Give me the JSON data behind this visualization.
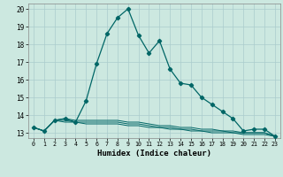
{
  "title": "",
  "xlabel": "Humidex (Indice chaleur)",
  "background_color": "#cce8e0",
  "grid_color": "#aacccc",
  "line_color": "#006666",
  "xlim": [
    -0.5,
    23.5
  ],
  "ylim": [
    12.7,
    20.3
  ],
  "yticks": [
    13,
    14,
    15,
    16,
    17,
    18,
    19,
    20
  ],
  "xticks": [
    0,
    1,
    2,
    3,
    4,
    5,
    6,
    7,
    8,
    9,
    10,
    11,
    12,
    13,
    14,
    15,
    16,
    17,
    18,
    19,
    20,
    21,
    22,
    23
  ],
  "main_series": [
    13.3,
    13.1,
    13.7,
    13.8,
    13.6,
    14.8,
    16.9,
    18.6,
    19.5,
    20.0,
    18.5,
    17.5,
    18.2,
    16.6,
    15.8,
    15.7,
    15.0,
    14.6,
    14.2,
    13.8,
    13.1,
    13.2,
    13.2,
    12.8
  ],
  "flat1": [
    13.3,
    13.1,
    13.7,
    13.8,
    13.7,
    13.7,
    13.7,
    13.7,
    13.7,
    13.6,
    13.6,
    13.5,
    13.4,
    13.4,
    13.3,
    13.3,
    13.2,
    13.2,
    13.1,
    13.1,
    13.0,
    13.0,
    13.0,
    12.8
  ],
  "flat2": [
    13.3,
    13.1,
    13.7,
    13.7,
    13.6,
    13.6,
    13.6,
    13.6,
    13.6,
    13.5,
    13.5,
    13.4,
    13.3,
    13.3,
    13.2,
    13.2,
    13.1,
    13.1,
    13.1,
    13.0,
    13.0,
    13.0,
    13.0,
    12.8
  ],
  "flat3": [
    13.3,
    13.1,
    13.7,
    13.6,
    13.6,
    13.5,
    13.5,
    13.5,
    13.5,
    13.4,
    13.4,
    13.3,
    13.3,
    13.2,
    13.2,
    13.1,
    13.1,
    13.0,
    13.0,
    13.0,
    12.9,
    12.9,
    12.9,
    12.8
  ]
}
